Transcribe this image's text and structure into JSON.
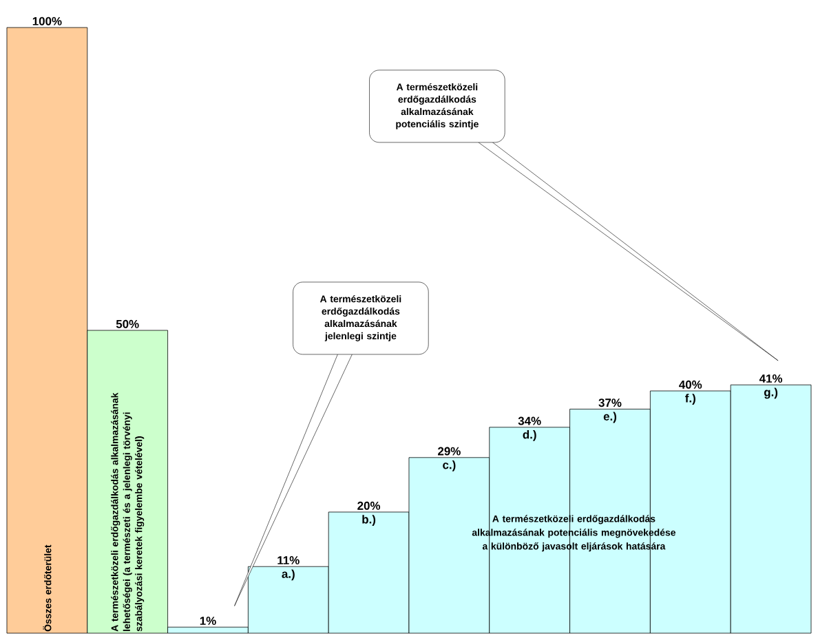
{
  "chart_data": {
    "type": "bar",
    "categories": [
      "Összes erdőterület",
      "A természetközeli erdőgazdálkodás alkalmazásának lehetőségei (a természeti és a jelenlegi törvényi szabályozási keretek figyelembe vételével)",
      null,
      null,
      null,
      null,
      null,
      null,
      null,
      null
    ],
    "values": [
      100,
      50,
      1,
      11,
      20,
      29,
      34,
      37,
      40,
      41
    ],
    "value_labels": [
      "100%",
      "50%",
      "1%",
      "11%",
      "20%",
      "29%",
      "34%",
      "37%",
      "40%",
      "41%"
    ],
    "colors": [
      "#ffcc99",
      "#ccffcc",
      "#ccffff",
      "#ccffff",
      "#ccffff",
      "#ccffff",
      "#ccffff",
      "#ccffff",
      "#ccffff",
      "#ccffff"
    ],
    "annotations": [
      "A természetközeli erdőgazdálkodás alkalmazásának jelenlegi szintje",
      "A természetközeli erdőgazdálkodás alkalmazásának potenciális szintje",
      "A természetközeli erdőgazdálkodás alkalmazásának potenciális megnövekedése a különböző javasolt eljárások hatására",
      {
        "text": "a.)",
        "y": 11
      },
      {
        "text": "b.)",
        "y": 20
      },
      {
        "text": "c.)",
        "y": 29
      },
      {
        "text": "d.)",
        "y": 34
      },
      {
        "text": "e.)",
        "y": 37
      },
      {
        "text": "f.)",
        "y": 40
      },
      {
        "text": "g.)",
        "y": 41
      }
    ]
  }
}
